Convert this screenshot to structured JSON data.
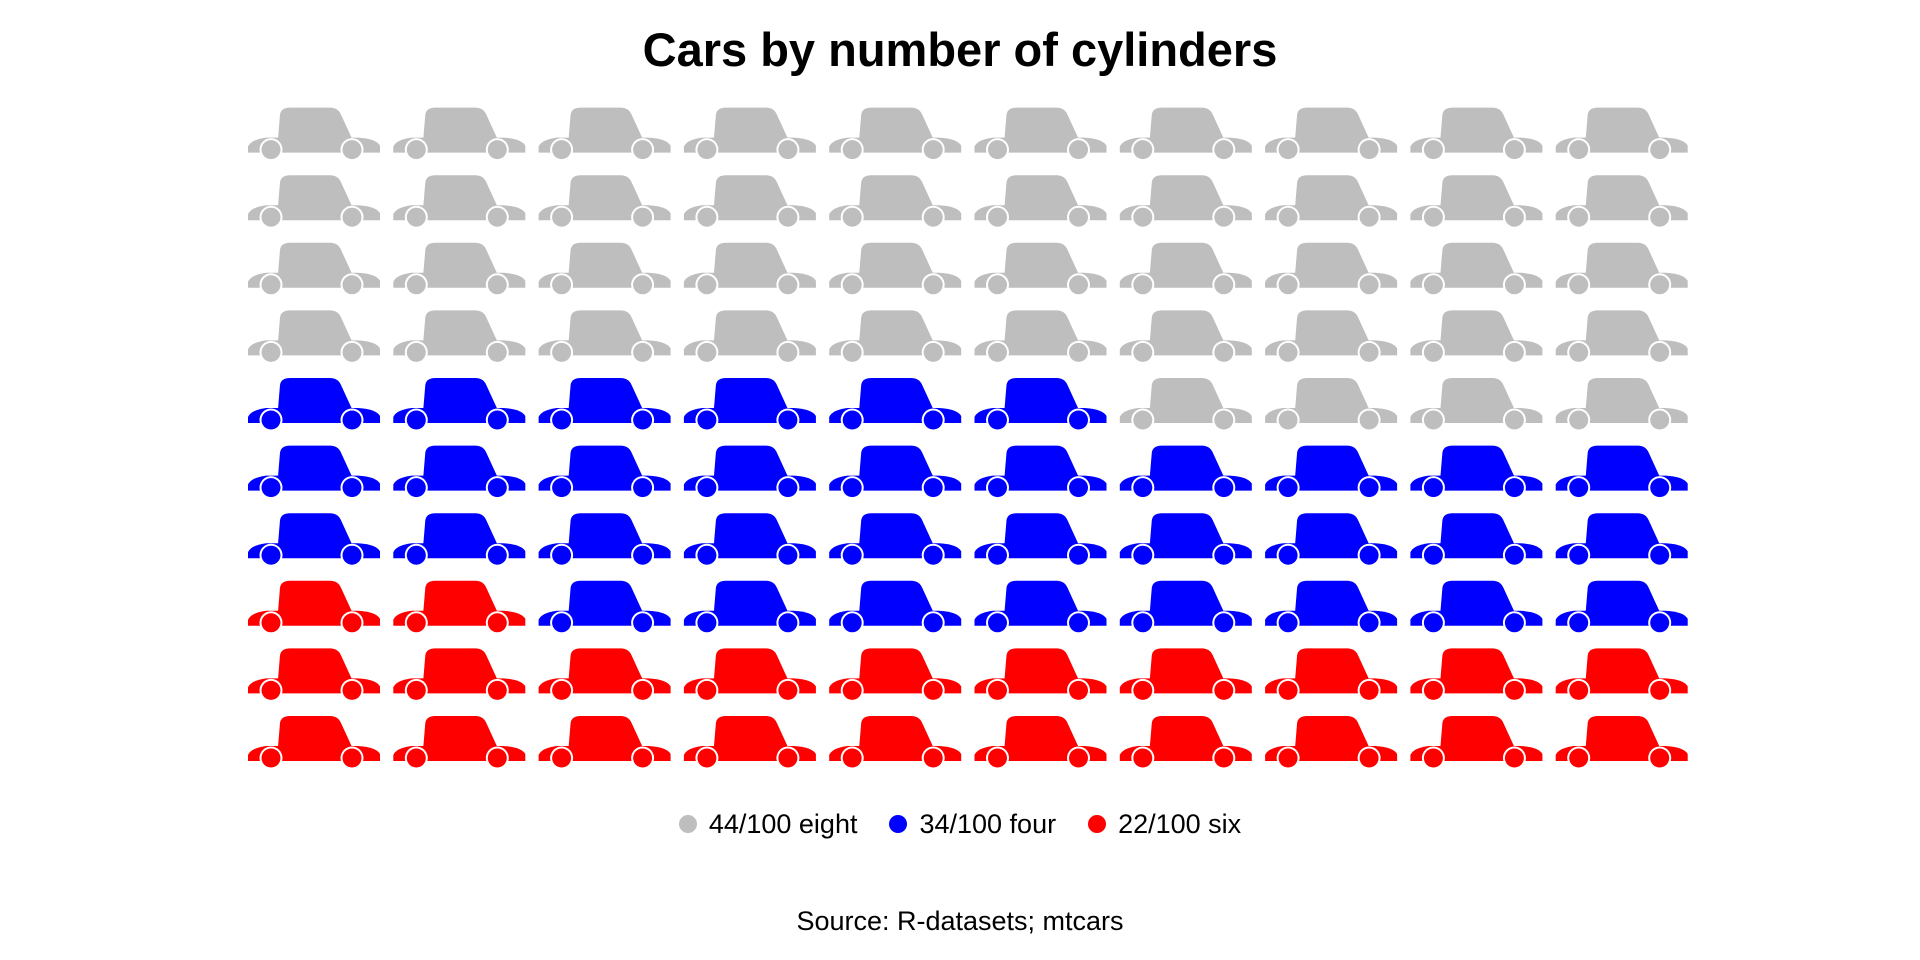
{
  "chart_data": {
    "type": "waffle",
    "title": "Cars by number of cylinders",
    "icon": "car-icon",
    "total": 100,
    "grid": {
      "columns": 10,
      "rows": 10
    },
    "series": [
      {
        "name": "eight",
        "value": 44,
        "color": "#bebebe",
        "label": "44/100 eight"
      },
      {
        "name": "four",
        "value": 34,
        "color": "#0000ff",
        "label": "34/100 four"
      },
      {
        "name": "six",
        "value": 22,
        "color": "#ff0000",
        "label": "22/100 six"
      }
    ],
    "legend_position": "bottom",
    "caption": "Source: R-datasets; mtcars"
  }
}
